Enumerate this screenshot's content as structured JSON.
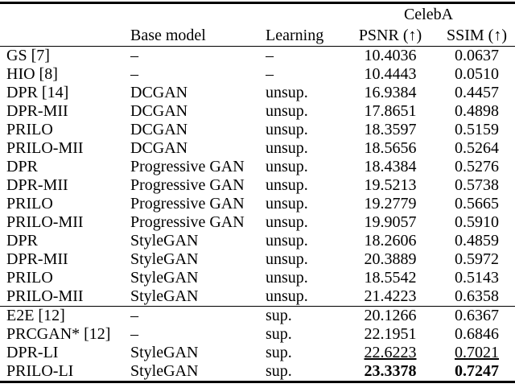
{
  "colors": {
    "background": "#ffffff",
    "text": "#000000",
    "rules": "#000000"
  },
  "table": {
    "group_header": "CelebA",
    "columns": [
      "",
      "Base model",
      "Learning",
      "PSNR (↑)",
      "SSIM (↑)"
    ],
    "sections": [
      {
        "rows": [
          {
            "method": "GS [7]",
            "base_model": "–",
            "learning": "–",
            "psnr": "10.4036",
            "ssim": "0.0637",
            "emphasis": "none"
          },
          {
            "method": "HIO [8]",
            "base_model": "–",
            "learning": "–",
            "psnr": "10.4443",
            "ssim": "0.0510",
            "emphasis": "none"
          },
          {
            "method": "DPR [14]",
            "base_model": "DCGAN",
            "learning": "unsup.",
            "psnr": "16.9384",
            "ssim": "0.4457",
            "emphasis": "none"
          },
          {
            "method": "DPR-MII",
            "base_model": "DCGAN",
            "learning": "unsup.",
            "psnr": "17.8651",
            "ssim": "0.4898",
            "emphasis": "none"
          },
          {
            "method": "PRILO",
            "base_model": "DCGAN",
            "learning": "unsup.",
            "psnr": "18.3597",
            "ssim": "0.5159",
            "emphasis": "none"
          },
          {
            "method": "PRILO-MII",
            "base_model": "DCGAN",
            "learning": "unsup.",
            "psnr": "18.5656",
            "ssim": "0.5264",
            "emphasis": "none"
          },
          {
            "method": "DPR",
            "base_model": "Progressive GAN",
            "learning": "unsup.",
            "psnr": "18.4384",
            "ssim": "0.5276",
            "emphasis": "none"
          },
          {
            "method": "DPR-MII",
            "base_model": "Progressive GAN",
            "learning": "unsup.",
            "psnr": "19.5213",
            "ssim": "0.5738",
            "emphasis": "none"
          },
          {
            "method": "PRILO",
            "base_model": "Progressive GAN",
            "learning": "unsup.",
            "psnr": "19.2779",
            "ssim": "0.5665",
            "emphasis": "none"
          },
          {
            "method": "PRILO-MII",
            "base_model": "Progressive GAN",
            "learning": "unsup.",
            "psnr": "19.9057",
            "ssim": "0.5910",
            "emphasis": "none"
          },
          {
            "method": "DPR",
            "base_model": "StyleGAN",
            "learning": "unsup.",
            "psnr": "18.2606",
            "ssim": "0.4859",
            "emphasis": "none"
          },
          {
            "method": "DPR-MII",
            "base_model": "StyleGAN",
            "learning": "unsup.",
            "psnr": "20.3889",
            "ssim": "0.5972",
            "emphasis": "none"
          },
          {
            "method": "PRILO",
            "base_model": "StyleGAN",
            "learning": "unsup.",
            "psnr": "18.5542",
            "ssim": "0.5143",
            "emphasis": "none"
          },
          {
            "method": "PRILO-MII",
            "base_model": "StyleGAN",
            "learning": "unsup.",
            "psnr": "21.4223",
            "ssim": "0.6358",
            "emphasis": "none"
          }
        ]
      },
      {
        "rows": [
          {
            "method": "E2E [12]",
            "base_model": "–",
            "learning": "sup.",
            "psnr": "20.1266",
            "ssim": "0.6367",
            "emphasis": "none"
          },
          {
            "method": "PRCGAN* [12]",
            "base_model": "–",
            "learning": "sup.",
            "psnr": "22.1951",
            "ssim": "0.6846",
            "emphasis": "none"
          },
          {
            "method": "DPR-LI",
            "base_model": "StyleGAN",
            "learning": "sup.",
            "psnr": "22.6223",
            "ssim": "0.7021",
            "emphasis": "underline"
          },
          {
            "method": "PRILO-LI",
            "base_model": "StyleGAN",
            "learning": "sup.",
            "psnr": "23.3378",
            "ssim": "0.7247",
            "emphasis": "bold"
          }
        ]
      }
    ]
  }
}
